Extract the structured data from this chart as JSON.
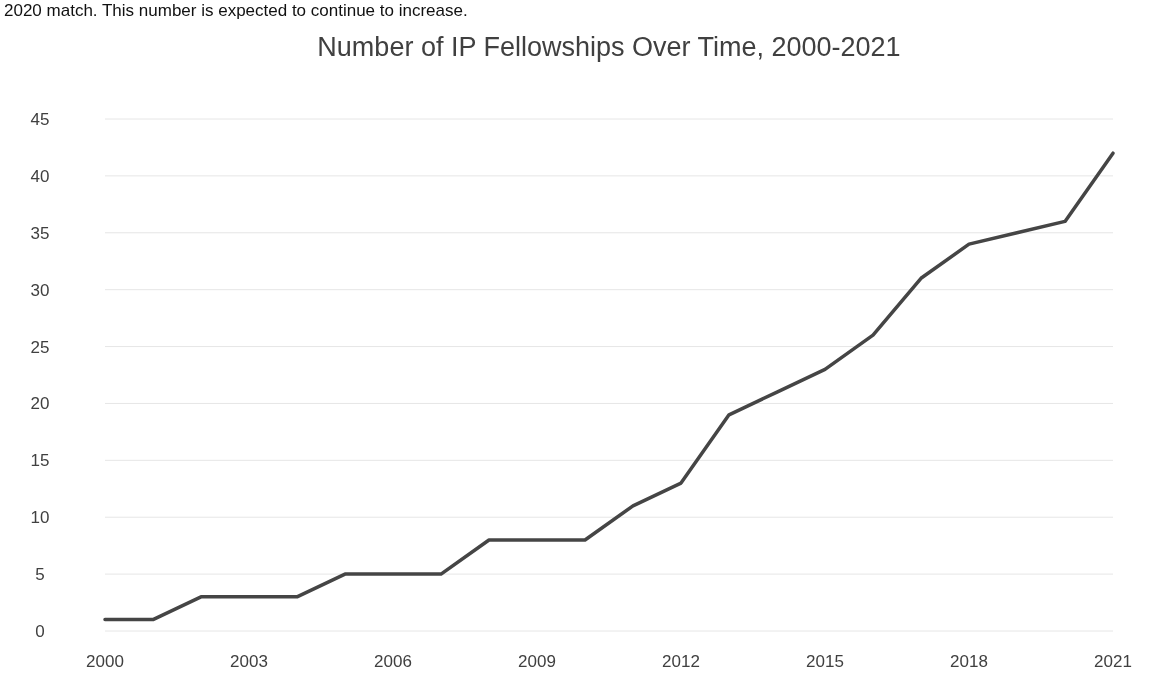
{
  "chart_data": {
    "type": "line",
    "title": "Number of IP Fellowships Over Time, 2000-2021",
    "annotations": [
      "2020 match.  This number is expected to continue to increase."
    ],
    "x": [
      2000,
      2001,
      2002,
      2003,
      2004,
      2005,
      2006,
      2007,
      2008,
      2009,
      2010,
      2011,
      2012,
      2013,
      2014,
      2015,
      2016,
      2017,
      2018,
      2019,
      2020,
      2021
    ],
    "series": [
      {
        "color": "#454545",
        "values": [
          1,
          1,
          3,
          3,
          3,
          5,
          5,
          5,
          8,
          8,
          8,
          11,
          13,
          19,
          21,
          23,
          26,
          31,
          34,
          35,
          36,
          42
        ]
      }
    ],
    "xlim": [
      2000,
      2021
    ],
    "xticks": [
      2000,
      2003,
      2006,
      2009,
      2012,
      2015,
      2018,
      2021
    ],
    "ylim": [
      0,
      45
    ],
    "yticks": [
      0,
      5,
      10,
      15,
      20,
      25,
      30,
      35,
      40,
      45
    ],
    "grid": "y",
    "line_style": "solid",
    "marker": "none"
  }
}
